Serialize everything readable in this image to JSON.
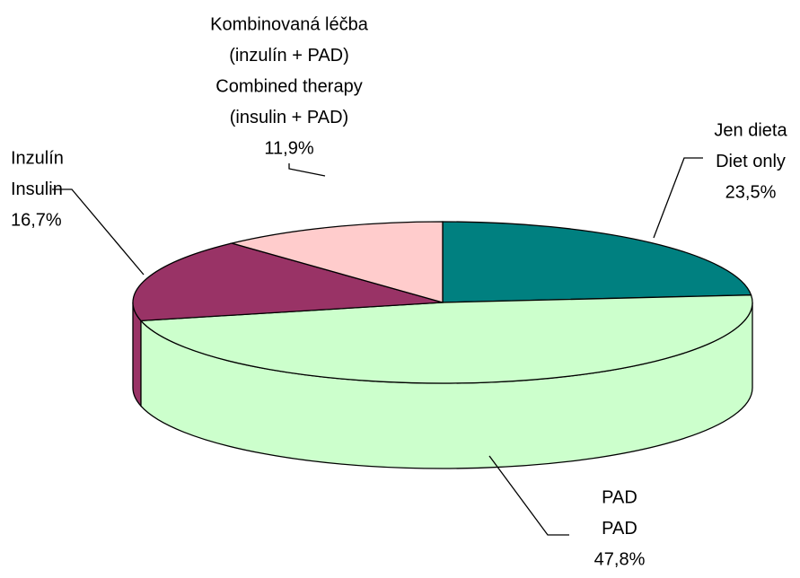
{
  "chart_data": {
    "type": "pie",
    "categories": [
      [
        "Jen dieta",
        "Diet only"
      ],
      [
        "PAD",
        "PAD"
      ],
      [
        "Inzulín",
        "Insulin"
      ],
      [
        "Kombinovaná léčba",
        "(inzulín + PAD)",
        "Combined therapy",
        "(insulin + PAD)"
      ]
    ],
    "values": [
      23.5,
      47.8,
      16.7,
      11.9
    ],
    "value_labels": [
      "23,5%",
      "47,8%",
      "16,7%",
      "11,9%"
    ],
    "colors": [
      "#008080",
      "#ccffcc",
      "#993366",
      "#ffcccc"
    ]
  }
}
